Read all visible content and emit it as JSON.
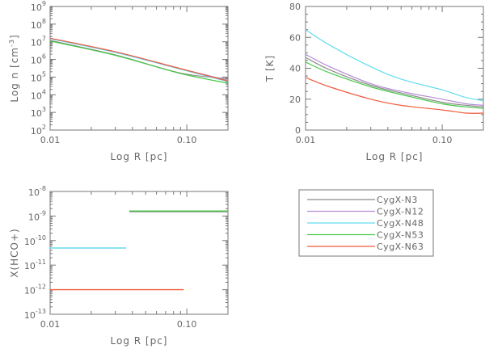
{
  "figure": {
    "series_names": [
      "CygX-N3",
      "CygX-N12",
      "CygX-N48",
      "CygX-N53",
      "CygX-N63"
    ],
    "colors": {
      "CygX-N3": "#8c8c8c",
      "CygX-N12": "#b48cd2",
      "CygX-N48": "#64dcf0",
      "CygX-N53": "#46c846",
      "CygX-N63": "#f05a3c"
    }
  },
  "chart_data": [
    {
      "id": "density",
      "type": "line",
      "xscale": "log",
      "yscale": "log",
      "xlabel": "Log R [pc]",
      "ylabel": "Log n [cm^-3]",
      "xlim": [
        0.01,
        0.2
      ],
      "ylim": [
        100,
        1000000000
      ],
      "xtick_labels": [
        "0.01",
        "0.10"
      ],
      "xtick_values": [
        0.01,
        0.1
      ],
      "ytick_exponents": [
        2,
        3,
        4,
        5,
        6,
        7,
        8,
        9
      ],
      "series": [
        {
          "name": "CygX-N3",
          "x": [
            0.01,
            0.03,
            0.09,
            0.2
          ],
          "y": [
            12000000,
            1800000,
            170000,
            80000
          ]
        },
        {
          "name": "CygX-N12",
          "x": [
            0.01,
            0.03,
            0.09,
            0.2
          ],
          "y": [
            16000000,
            2700000,
            300000,
            65000
          ]
        },
        {
          "name": "CygX-N48",
          "x": [
            0.01,
            0.03,
            0.09,
            0.2
          ],
          "y": [
            15000000,
            2500000,
            280000,
            55000
          ]
        },
        {
          "name": "CygX-N53",
          "x": [
            0.01,
            0.03,
            0.09,
            0.2
          ],
          "y": [
            11000000,
            1700000,
            160000,
            45000
          ]
        },
        {
          "name": "CygX-N63",
          "x": [
            0.01,
            0.03,
            0.09,
            0.2
          ],
          "y": [
            16000000,
            2700000,
            300000,
            60000
          ]
        }
      ]
    },
    {
      "id": "temperature",
      "type": "line",
      "xscale": "log",
      "yscale": "linear",
      "xlabel": "Log R [pc]",
      "ylabel": "T [K]",
      "xlim": [
        0.01,
        0.2
      ],
      "ylim": [
        0,
        80
      ],
      "xtick_labels": [
        "0.01",
        "0.10"
      ],
      "xtick_values": [
        0.01,
        0.1
      ],
      "ytick_labels": [
        "0",
        "20",
        "40",
        "60",
        "80"
      ],
      "ytick_values": [
        0,
        20,
        40,
        60,
        80
      ],
      "series": [
        {
          "name": "CygX-N3",
          "x": [
            0.01,
            0.015,
            0.03,
            0.05,
            0.1,
            0.15,
            0.2
          ],
          "y": [
            47,
            39,
            29,
            24,
            18,
            16,
            15
          ]
        },
        {
          "name": "CygX-N12",
          "x": [
            0.01,
            0.015,
            0.03,
            0.05,
            0.1,
            0.15,
            0.2
          ],
          "y": [
            49,
            41,
            30,
            25,
            20,
            17,
            16
          ]
        },
        {
          "name": "CygX-N48",
          "x": [
            0.01,
            0.015,
            0.03,
            0.05,
            0.1,
            0.15,
            0.2
          ],
          "y": [
            65,
            55,
            41,
            33,
            26,
            21,
            19
          ]
        },
        {
          "name": "CygX-N53",
          "x": [
            0.01,
            0.015,
            0.03,
            0.05,
            0.1,
            0.15,
            0.2
          ],
          "y": [
            44,
            37,
            28,
            23,
            17,
            15,
            14
          ]
        },
        {
          "name": "CygX-N63",
          "x": [
            0.01,
            0.015,
            0.03,
            0.05,
            0.1,
            0.15,
            0.2
          ],
          "y": [
            34,
            28,
            20,
            16,
            13,
            11,
            11
          ]
        }
      ]
    },
    {
      "id": "abundance",
      "type": "line",
      "xscale": "log",
      "yscale": "log",
      "xlabel": "Log R [pc]",
      "ylabel": "X(HCO+)",
      "xlim": [
        0.01,
        0.2
      ],
      "ylim": [
        1e-13,
        1e-08
      ],
      "xtick_labels": [
        "0.01",
        "0.10"
      ],
      "xtick_values": [
        0.01,
        0.1
      ],
      "ytick_exponents": [
        -13,
        -12,
        -11,
        -10,
        -9,
        -8
      ],
      "series": [
        {
          "name": "CygX-N3",
          "x": [
            0.038,
            0.2
          ],
          "y": [
            1.5e-09,
            1.5e-09
          ]
        },
        {
          "name": "CygX-N53",
          "x": [
            0.038,
            0.2
          ],
          "y": [
            1.6e-09,
            1.6e-09
          ]
        },
        {
          "name": "CygX-N48",
          "x": [
            0.01,
            0.036
          ],
          "y": [
            5e-11,
            5e-11
          ]
        },
        {
          "name": "CygX-N63",
          "x": [
            0.01,
            0.095
          ],
          "y": [
            1e-12,
            1e-12
          ]
        }
      ]
    }
  ]
}
